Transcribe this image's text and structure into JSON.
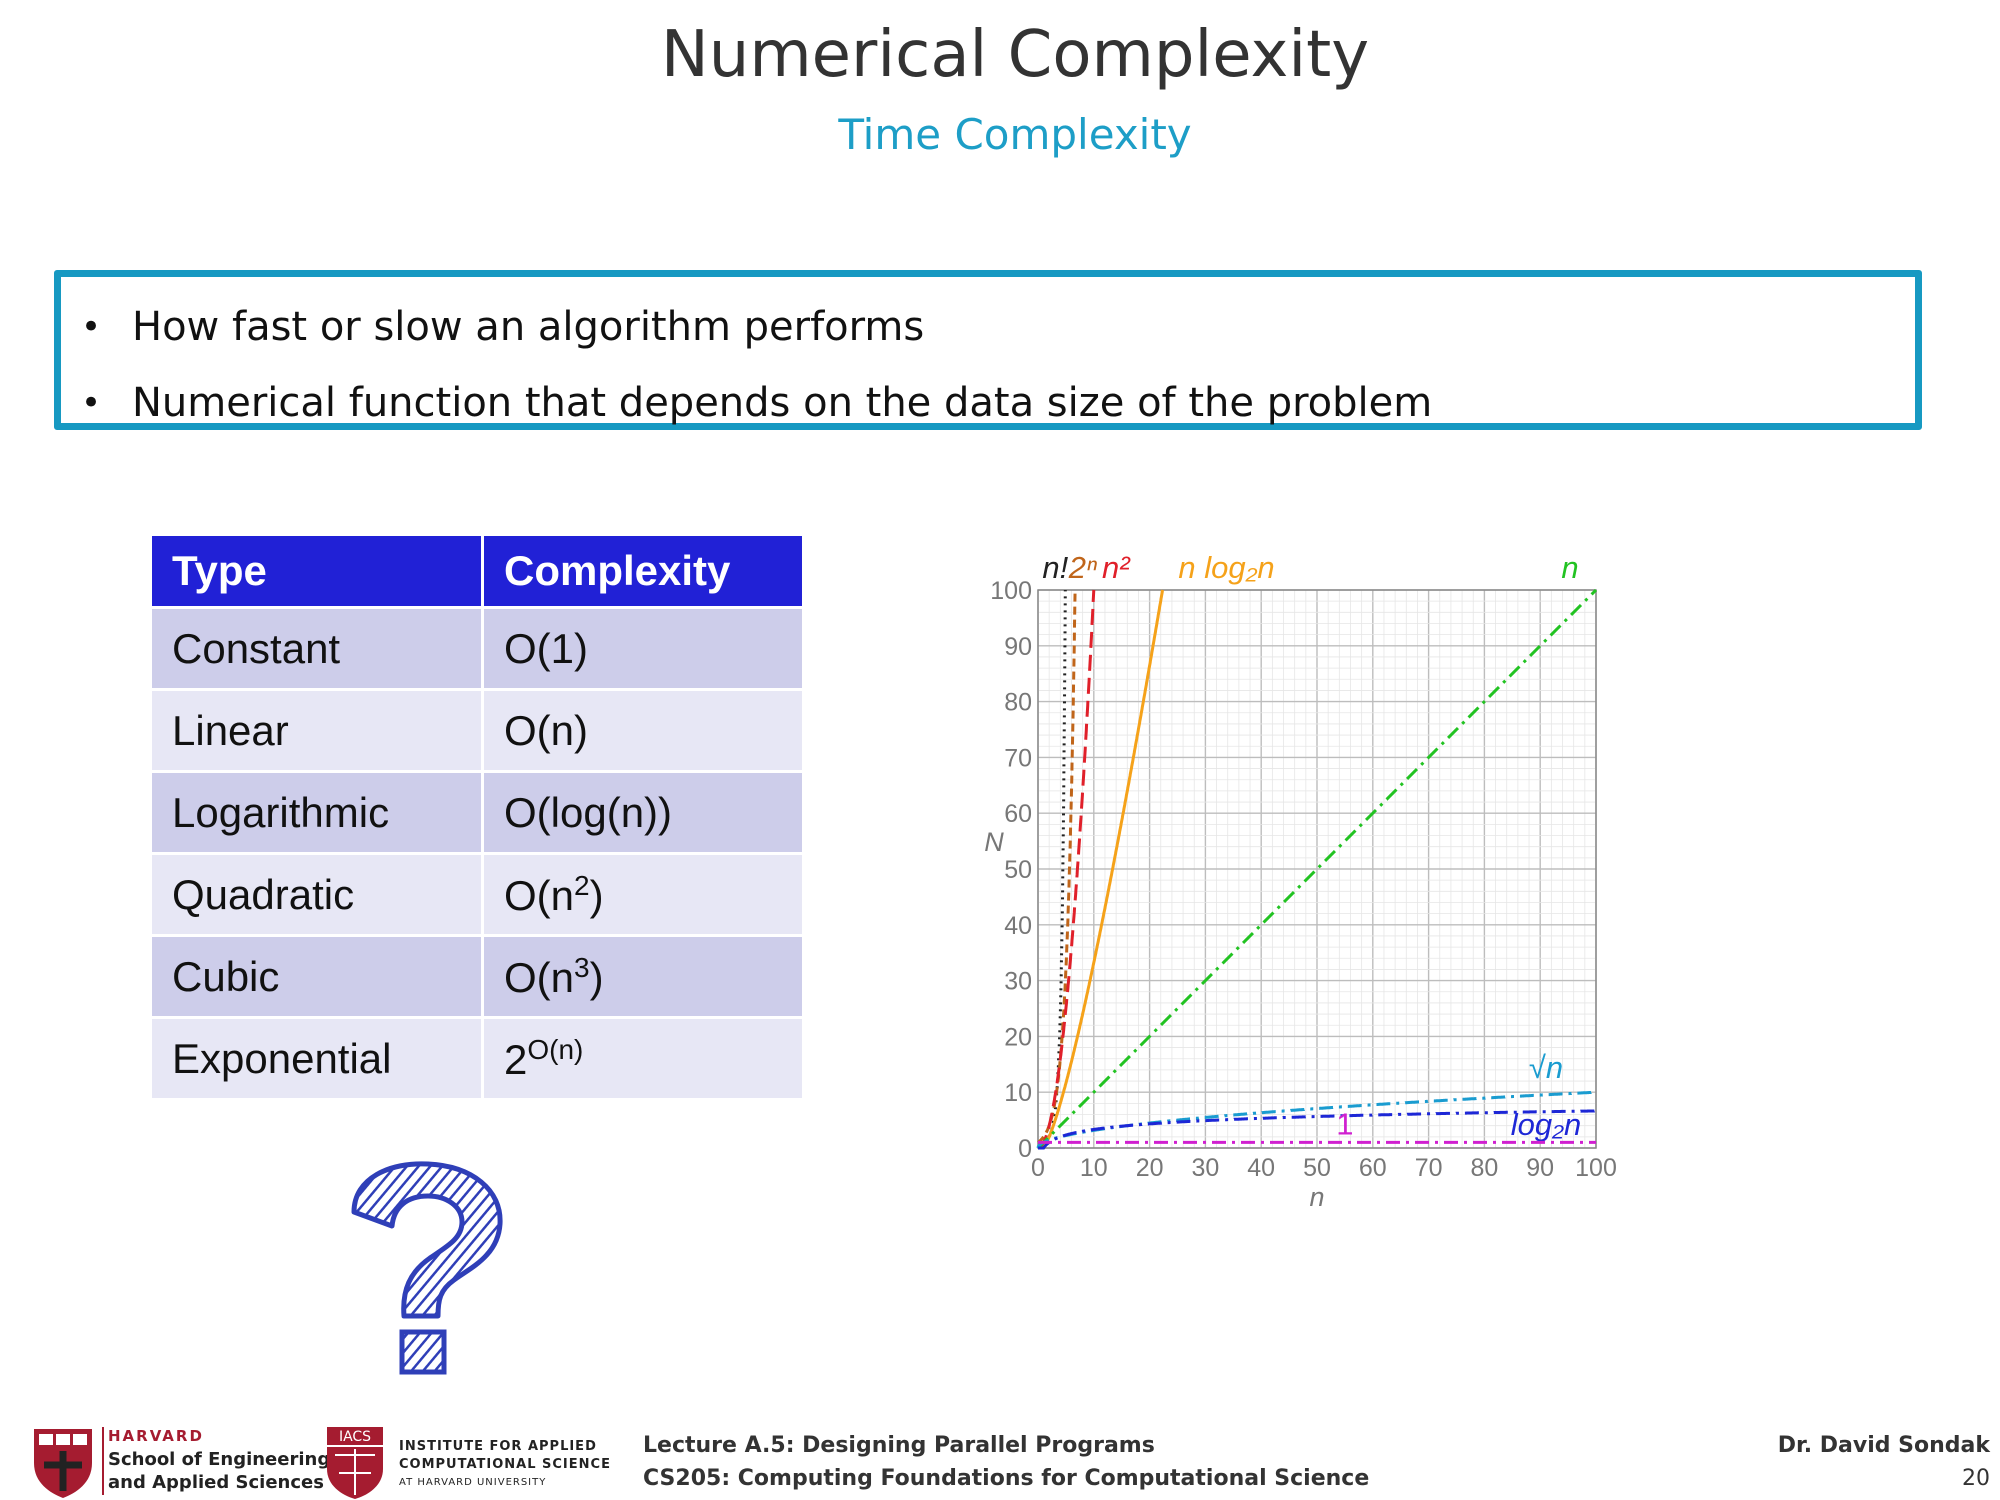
{
  "slide": {
    "title": "Numerical Complexity",
    "subtitle": "Time Complexity",
    "bullets": [
      "How fast or slow an algorithm performs",
      "Numerical function that depends on the data size of the problem"
    ],
    "bullet_glyph": "•"
  },
  "table": {
    "headers": [
      "Type",
      "Complexity"
    ],
    "rows": [
      {
        "type": "Constant",
        "base": "O(1)",
        "sup": ""
      },
      {
        "type": "Linear",
        "base": "O(n)",
        "sup": ""
      },
      {
        "type": "Logarithmic",
        "base": "O(log(n))",
        "sup": ""
      },
      {
        "type": "Quadratic",
        "base": "O(n",
        "sup": "2",
        "tail": ")"
      },
      {
        "type": "Cubic",
        "base": "O(n",
        "sup": "3",
        "tail": ")"
      },
      {
        "type": "Exponential",
        "base": "2",
        "sup": "O(n)",
        "tail": ""
      }
    ],
    "header_bg": "#2121d6",
    "row_bg_odd": "#cdcdea",
    "row_bg_even": "#e7e7f5"
  },
  "decoration": {
    "icon": "question-mark-icon",
    "color": "#2f3fb8"
  },
  "chart_data": {
    "type": "line",
    "xlabel": "n",
    "ylabel": "N",
    "xlim": [
      0,
      100
    ],
    "ylim": [
      0,
      100
    ],
    "x_ticks": [
      0,
      10,
      20,
      30,
      40,
      50,
      60,
      70,
      80,
      90,
      100
    ],
    "y_ticks": [
      0,
      10,
      20,
      30,
      40,
      50,
      60,
      70,
      80,
      90,
      100
    ],
    "grid": true,
    "series": [
      {
        "name": "n!",
        "func": "factorial",
        "color": "#222222",
        "dash": "dotted",
        "label_pos": "top"
      },
      {
        "name": "2ⁿ",
        "func": "exp2",
        "color": "#c0651a",
        "dash": "dashed",
        "label_pos": "top"
      },
      {
        "name": "n²",
        "func": "square",
        "color": "#e0202a",
        "dash": "longdash",
        "label_pos": "top"
      },
      {
        "name": "n log₂n",
        "func": "nlogn",
        "color": "#f5a21a",
        "dash": "solid",
        "label_pos": "top"
      },
      {
        "name": "n",
        "func": "linear",
        "color": "#22c322",
        "dash": "dashdot",
        "label_pos": "top"
      },
      {
        "name": "√n",
        "func": "sqrt",
        "color": "#1a9cd0",
        "dash": "dashdot",
        "label_pos": "right"
      },
      {
        "name": "log₂n",
        "func": "log2",
        "color": "#1d27d6",
        "dash": "dashdot",
        "label_pos": "right"
      },
      {
        "name": "1",
        "func": "constant",
        "color": "#d020d0",
        "dash": "dashdot",
        "label_pos": "inline"
      }
    ]
  },
  "footer": {
    "harvard": "HARVARD",
    "sea_line1": "School of Engineering",
    "sea_line2": "and Applied Sciences",
    "iacs_badge": "IACS",
    "iacs_line1": "INSTITUTE FOR APPLIED",
    "iacs_line2": "COMPUTATIONAL SCIENCE",
    "iacs_line3": "AT HARVARD UNIVERSITY",
    "lecture": "Lecture A.5: Designing Parallel Programs",
    "course": "CS205: Computing Foundations for Computational Science",
    "author": "Dr. David Sondak",
    "page": "20"
  }
}
